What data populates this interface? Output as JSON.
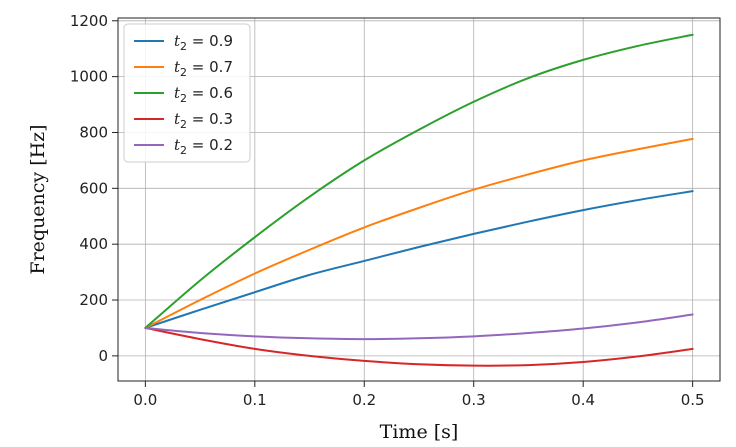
{
  "chart_data": {
    "type": "line",
    "title": "",
    "xlabel": "Time [s]",
    "ylabel": "Frequency [Hz]",
    "xlim": [
      -0.025,
      0.525
    ],
    "ylim": [
      -90,
      1210
    ],
    "xticks": [
      0.0,
      0.1,
      0.2,
      0.3,
      0.4,
      0.5
    ],
    "xtick_labels": [
      "0.0",
      "0.1",
      "0.2",
      "0.3",
      "0.4",
      "0.5"
    ],
    "yticks": [
      0,
      200,
      400,
      600,
      800,
      1000,
      1200
    ],
    "ytick_labels": [
      "0",
      "200",
      "400",
      "600",
      "800",
      "1000",
      "1200"
    ],
    "grid": true,
    "legend_position": "top-left",
    "x": [
      0.0,
      0.05,
      0.1,
      0.15,
      0.2,
      0.25,
      0.3,
      0.35,
      0.4,
      0.45,
      0.5
    ],
    "series": [
      {
        "name": "t₂ = 0.9",
        "legend_var": "t",
        "legend_sub": "2",
        "legend_value": " = 0.9",
        "color": "#1f77b4",
        "values": [
          100,
          165,
          228,
          290,
          340,
          390,
          437,
          481,
          522,
          558,
          590
        ]
      },
      {
        "name": "t₂ = 0.7",
        "legend_var": "t",
        "legend_sub": "2",
        "legend_value": " = 0.7",
        "color": "#ff7f0e",
        "values": [
          100,
          200,
          295,
          380,
          460,
          530,
          595,
          650,
          700,
          740,
          777
        ]
      },
      {
        "name": "t₂ = 0.6",
        "legend_var": "t",
        "legend_sub": "2",
        "legend_value": " = 0.6",
        "color": "#2ca02c",
        "values": [
          100,
          270,
          425,
          570,
          700,
          810,
          910,
          995,
          1060,
          1110,
          1150
        ]
      },
      {
        "name": "t₂ = 0.3",
        "legend_var": "t",
        "legend_sub": "2",
        "legend_value": " = 0.3",
        "color": "#d62728",
        "values": [
          100,
          60,
          25,
          0,
          -18,
          -30,
          -35,
          -33,
          -22,
          -2,
          25
        ]
      },
      {
        "name": "t₂ = 0.2",
        "legend_var": "t",
        "legend_sub": "2",
        "legend_value": " = 0.2",
        "color": "#9467bd",
        "values": [
          100,
          82,
          70,
          63,
          60,
          63,
          70,
          82,
          98,
          120,
          148
        ]
      }
    ]
  }
}
